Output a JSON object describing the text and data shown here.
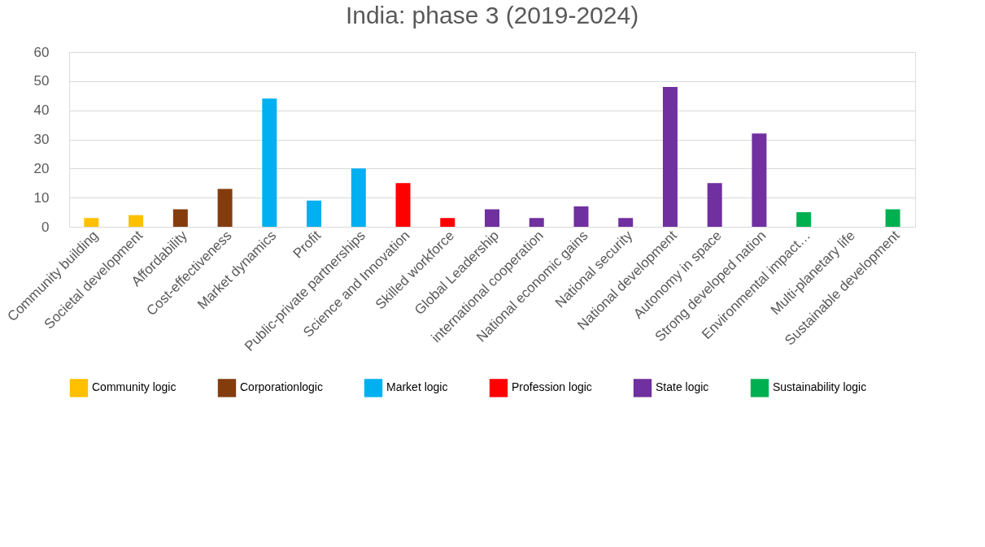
{
  "chart_data": {
    "type": "bar",
    "title": "India: phase 3 (2019-2024)",
    "categories": [
      "Community building",
      "Societal development",
      "Affordability",
      "Cost-effectiveness",
      "Market dynamics",
      "Profit",
      "Public-private partnerships",
      "Science and Innovation",
      "Skilled workforce",
      "Global Leadership",
      "international cooperation",
      "National economic gains",
      "National security",
      "National development",
      "Autonomy in space",
      "Strong developed nation",
      "Environmental impact…",
      "Multi-planetary life",
      "Sustainable development"
    ],
    "series": [
      {
        "name": "Community logic",
        "color": "#ffc000",
        "values": [
          3,
          4,
          null,
          null,
          null,
          null,
          null,
          null,
          null,
          null,
          null,
          null,
          null,
          null,
          null,
          null,
          null,
          null,
          null
        ]
      },
      {
        "name": "Corporationlogic",
        "color": "#843c0c",
        "values": [
          null,
          null,
          6,
          13,
          null,
          null,
          null,
          null,
          null,
          null,
          null,
          null,
          null,
          null,
          null,
          null,
          null,
          null,
          null
        ]
      },
      {
        "name": "Market logic",
        "color": "#00b0f0",
        "values": [
          null,
          null,
          null,
          null,
          44,
          9,
          20,
          null,
          null,
          null,
          null,
          null,
          null,
          null,
          null,
          null,
          null,
          null,
          null
        ]
      },
      {
        "name": "Profession logic",
        "color": "#ff0000",
        "values": [
          null,
          null,
          null,
          null,
          null,
          null,
          null,
          15,
          3,
          null,
          null,
          null,
          null,
          null,
          null,
          null,
          null,
          null,
          null
        ]
      },
      {
        "name": "State logic",
        "color": "#7030a0",
        "values": [
          null,
          null,
          null,
          null,
          null,
          null,
          null,
          null,
          null,
          6,
          3,
          7,
          3,
          48,
          15,
          32,
          null,
          null,
          null
        ]
      },
      {
        "name": "Sustainability logic",
        "color": "#00b050",
        "values": [
          null,
          null,
          null,
          null,
          null,
          null,
          null,
          null,
          null,
          null,
          null,
          null,
          null,
          null,
          null,
          null,
          5,
          0,
          6
        ]
      }
    ],
    "ylim": [
      0,
      60
    ],
    "yticks": [
      0,
      10,
      20,
      30,
      40,
      50,
      60
    ],
    "grid": "y",
    "legend": "bottom"
  }
}
